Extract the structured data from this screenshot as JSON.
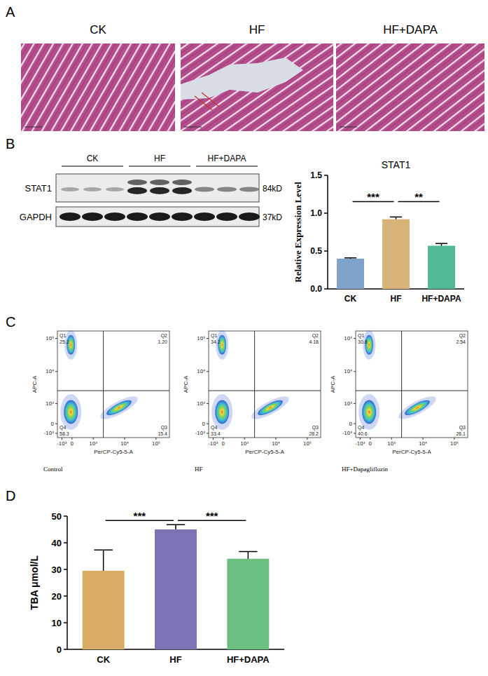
{
  "panel_labels": [
    "A",
    "B",
    "C",
    "D"
  ],
  "panel_a": {
    "titles": [
      "CK",
      "HF",
      "HF+DAPA"
    ]
  },
  "panel_b_blot": {
    "groups": [
      "CK",
      "HF",
      "HF+DAPA"
    ],
    "rows": [
      {
        "label": "STAT1",
        "size": "84kD"
      },
      {
        "label": "GAPDH",
        "size": "37kD"
      }
    ]
  },
  "panel_c": {
    "x_label": "PerCP-Cy5-5-A",
    "y_label": "APC-A",
    "x_ticks": [
      "-10³",
      "0",
      "10³",
      "10⁴",
      "10⁵"
    ],
    "y_ticks": [
      "10⁵",
      "10⁴",
      "10³",
      "0",
      "-10³"
    ],
    "plots": [
      {
        "caption": "Control",
        "quadrants": [
          {
            "name": "Q1",
            "value": "25.2"
          },
          {
            "name": "Q2",
            "value": "1.20"
          },
          {
            "name": "Q3",
            "value": "15.4"
          },
          {
            "name": "Q4",
            "value": "58.3"
          }
        ]
      },
      {
        "caption": "HF",
        "quadrants": [
          {
            "name": "Q1",
            "value": "34.2"
          },
          {
            "name": "Q2",
            "value": "4.18"
          },
          {
            "name": "Q3",
            "value": "28.2"
          },
          {
            "name": "Q4",
            "value": "33.4"
          }
        ]
      },
      {
        "caption": "HF+Dapagliflozin",
        "quadrants": [
          {
            "name": "Q1",
            "value": "30.8"
          },
          {
            "name": "Q2",
            "value": "2.54"
          },
          {
            "name": "Q3",
            "value": "26.1"
          },
          {
            "name": "Q4",
            "value": "40.6"
          }
        ]
      }
    ]
  },
  "chart_data": [
    {
      "type": "bar",
      "title": "STAT1",
      "categories": [
        "CK",
        "HF",
        "HF+DAPA"
      ],
      "values": [
        0.4,
        0.92,
        0.57
      ],
      "errors": [
        0.01,
        0.03,
        0.03
      ],
      "colors": [
        "#7fa3cb",
        "#d8b47a",
        "#52b996"
      ],
      "ylim": [
        0,
        1.5
      ],
      "yticks": [
        {
          "value": 0,
          "label": "0.0"
        },
        {
          "value": 0.5,
          "label": "0.5"
        },
        {
          "value": 1,
          "label": "1.0"
        },
        {
          "value": 1.5,
          "label": "1.5"
        }
      ],
      "y_label": "Relative Expression Level",
      "annotations": [
        {
          "text": "***",
          "from": 0,
          "to": 1
        },
        {
          "text": "**",
          "from": 1,
          "to": 2
        }
      ]
    },
    {
      "type": "bar",
      "categories": [
        "CK",
        "HF",
        "HF+DAPA"
      ],
      "values": [
        29.5,
        45,
        34
      ],
      "errors": [
        7.8,
        1.8,
        2.7
      ],
      "colors": [
        "#d9ad68",
        "#7a73b5",
        "#6bbf80"
      ],
      "ylim": [
        0,
        50
      ],
      "yticks": [
        0,
        10,
        20,
        30,
        40,
        50
      ],
      "y_label": "TBA μmol/L",
      "annotations": [
        {
          "text": "***",
          "from": 0,
          "to": 1
        },
        {
          "text": "***",
          "from": 1,
          "to": 2
        }
      ]
    }
  ]
}
